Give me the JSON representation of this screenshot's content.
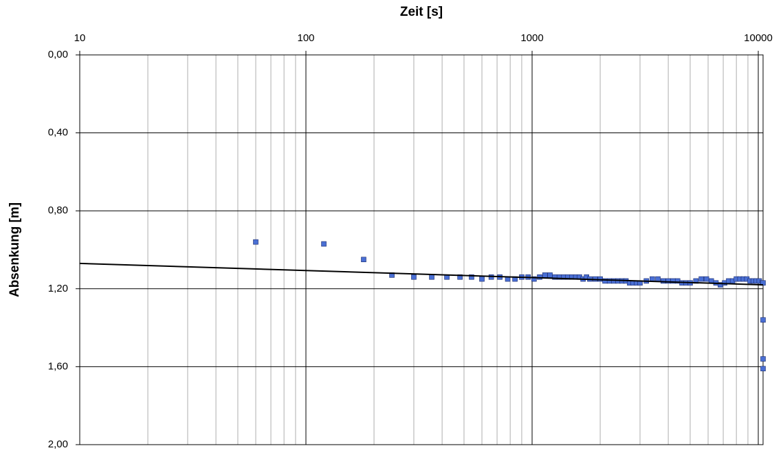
{
  "chart_data": {
    "type": "scatter",
    "title": "Zeit [s]",
    "y_label": "Absenkung [m]",
    "xscale": "log",
    "xlim": [
      10,
      10500
    ],
    "xticks": [
      10,
      100,
      1000,
      10000
    ],
    "ylim": [
      0,
      2
    ],
    "y_inverted": true,
    "yticks": [
      {
        "value": 0,
        "label": "0,00"
      },
      {
        "value": 0.4,
        "label": "0,40"
      },
      {
        "value": 0.8,
        "label": "0,80"
      },
      {
        "value": 1.2,
        "label": "1,20"
      },
      {
        "value": 1.6,
        "label": "1,60"
      },
      {
        "value": 2,
        "label": "2,00"
      }
    ],
    "grid": true,
    "series": [
      {
        "type": "scatter",
        "color": "#4a6fd4",
        "x": [
          60,
          120,
          180,
          240,
          300,
          360,
          420,
          480,
          540,
          600,
          660,
          720,
          780,
          840,
          900,
          960,
          1020,
          1080,
          1140,
          1200,
          1260,
          1320,
          1380,
          1440,
          1500,
          1560,
          1620,
          1680,
          1740,
          1800,
          1900,
          2000,
          2100,
          2200,
          2300,
          2400,
          2500,
          2600,
          2700,
          2800,
          2900,
          3000,
          3200,
          3400,
          3600,
          3800,
          4000,
          4200,
          4400,
          4600,
          4800,
          5000,
          5300,
          5600,
          5900,
          6200,
          6500,
          6800,
          7100,
          7400,
          7700,
          8000,
          8300,
          8600,
          8900,
          9200,
          9500,
          9800,
          10100,
          10400,
          10500,
          10500,
          10500,
          10500
        ],
        "values": [
          0.96,
          0.97,
          1.05,
          1.13,
          1.14,
          1.14,
          1.14,
          1.14,
          1.14,
          1.15,
          1.14,
          1.14,
          1.15,
          1.15,
          1.14,
          1.14,
          1.15,
          1.14,
          1.13,
          1.13,
          1.14,
          1.14,
          1.14,
          1.14,
          1.14,
          1.14,
          1.14,
          1.15,
          1.14,
          1.15,
          1.15,
          1.15,
          1.16,
          1.16,
          1.16,
          1.16,
          1.16,
          1.16,
          1.17,
          1.17,
          1.17,
          1.17,
          1.16,
          1.15,
          1.15,
          1.16,
          1.16,
          1.16,
          1.16,
          1.17,
          1.17,
          1.17,
          1.16,
          1.15,
          1.15,
          1.16,
          1.17,
          1.18,
          1.17,
          1.16,
          1.16,
          1.15,
          1.15,
          1.15,
          1.15,
          1.16,
          1.16,
          1.16,
          1.16,
          1.17,
          1.36,
          1.56,
          1.61,
          1.17
        ]
      },
      {
        "type": "line",
        "color": "#000000",
        "x": [
          10,
          10500
        ],
        "values": [
          1.07,
          1.18
        ]
      }
    ]
  }
}
